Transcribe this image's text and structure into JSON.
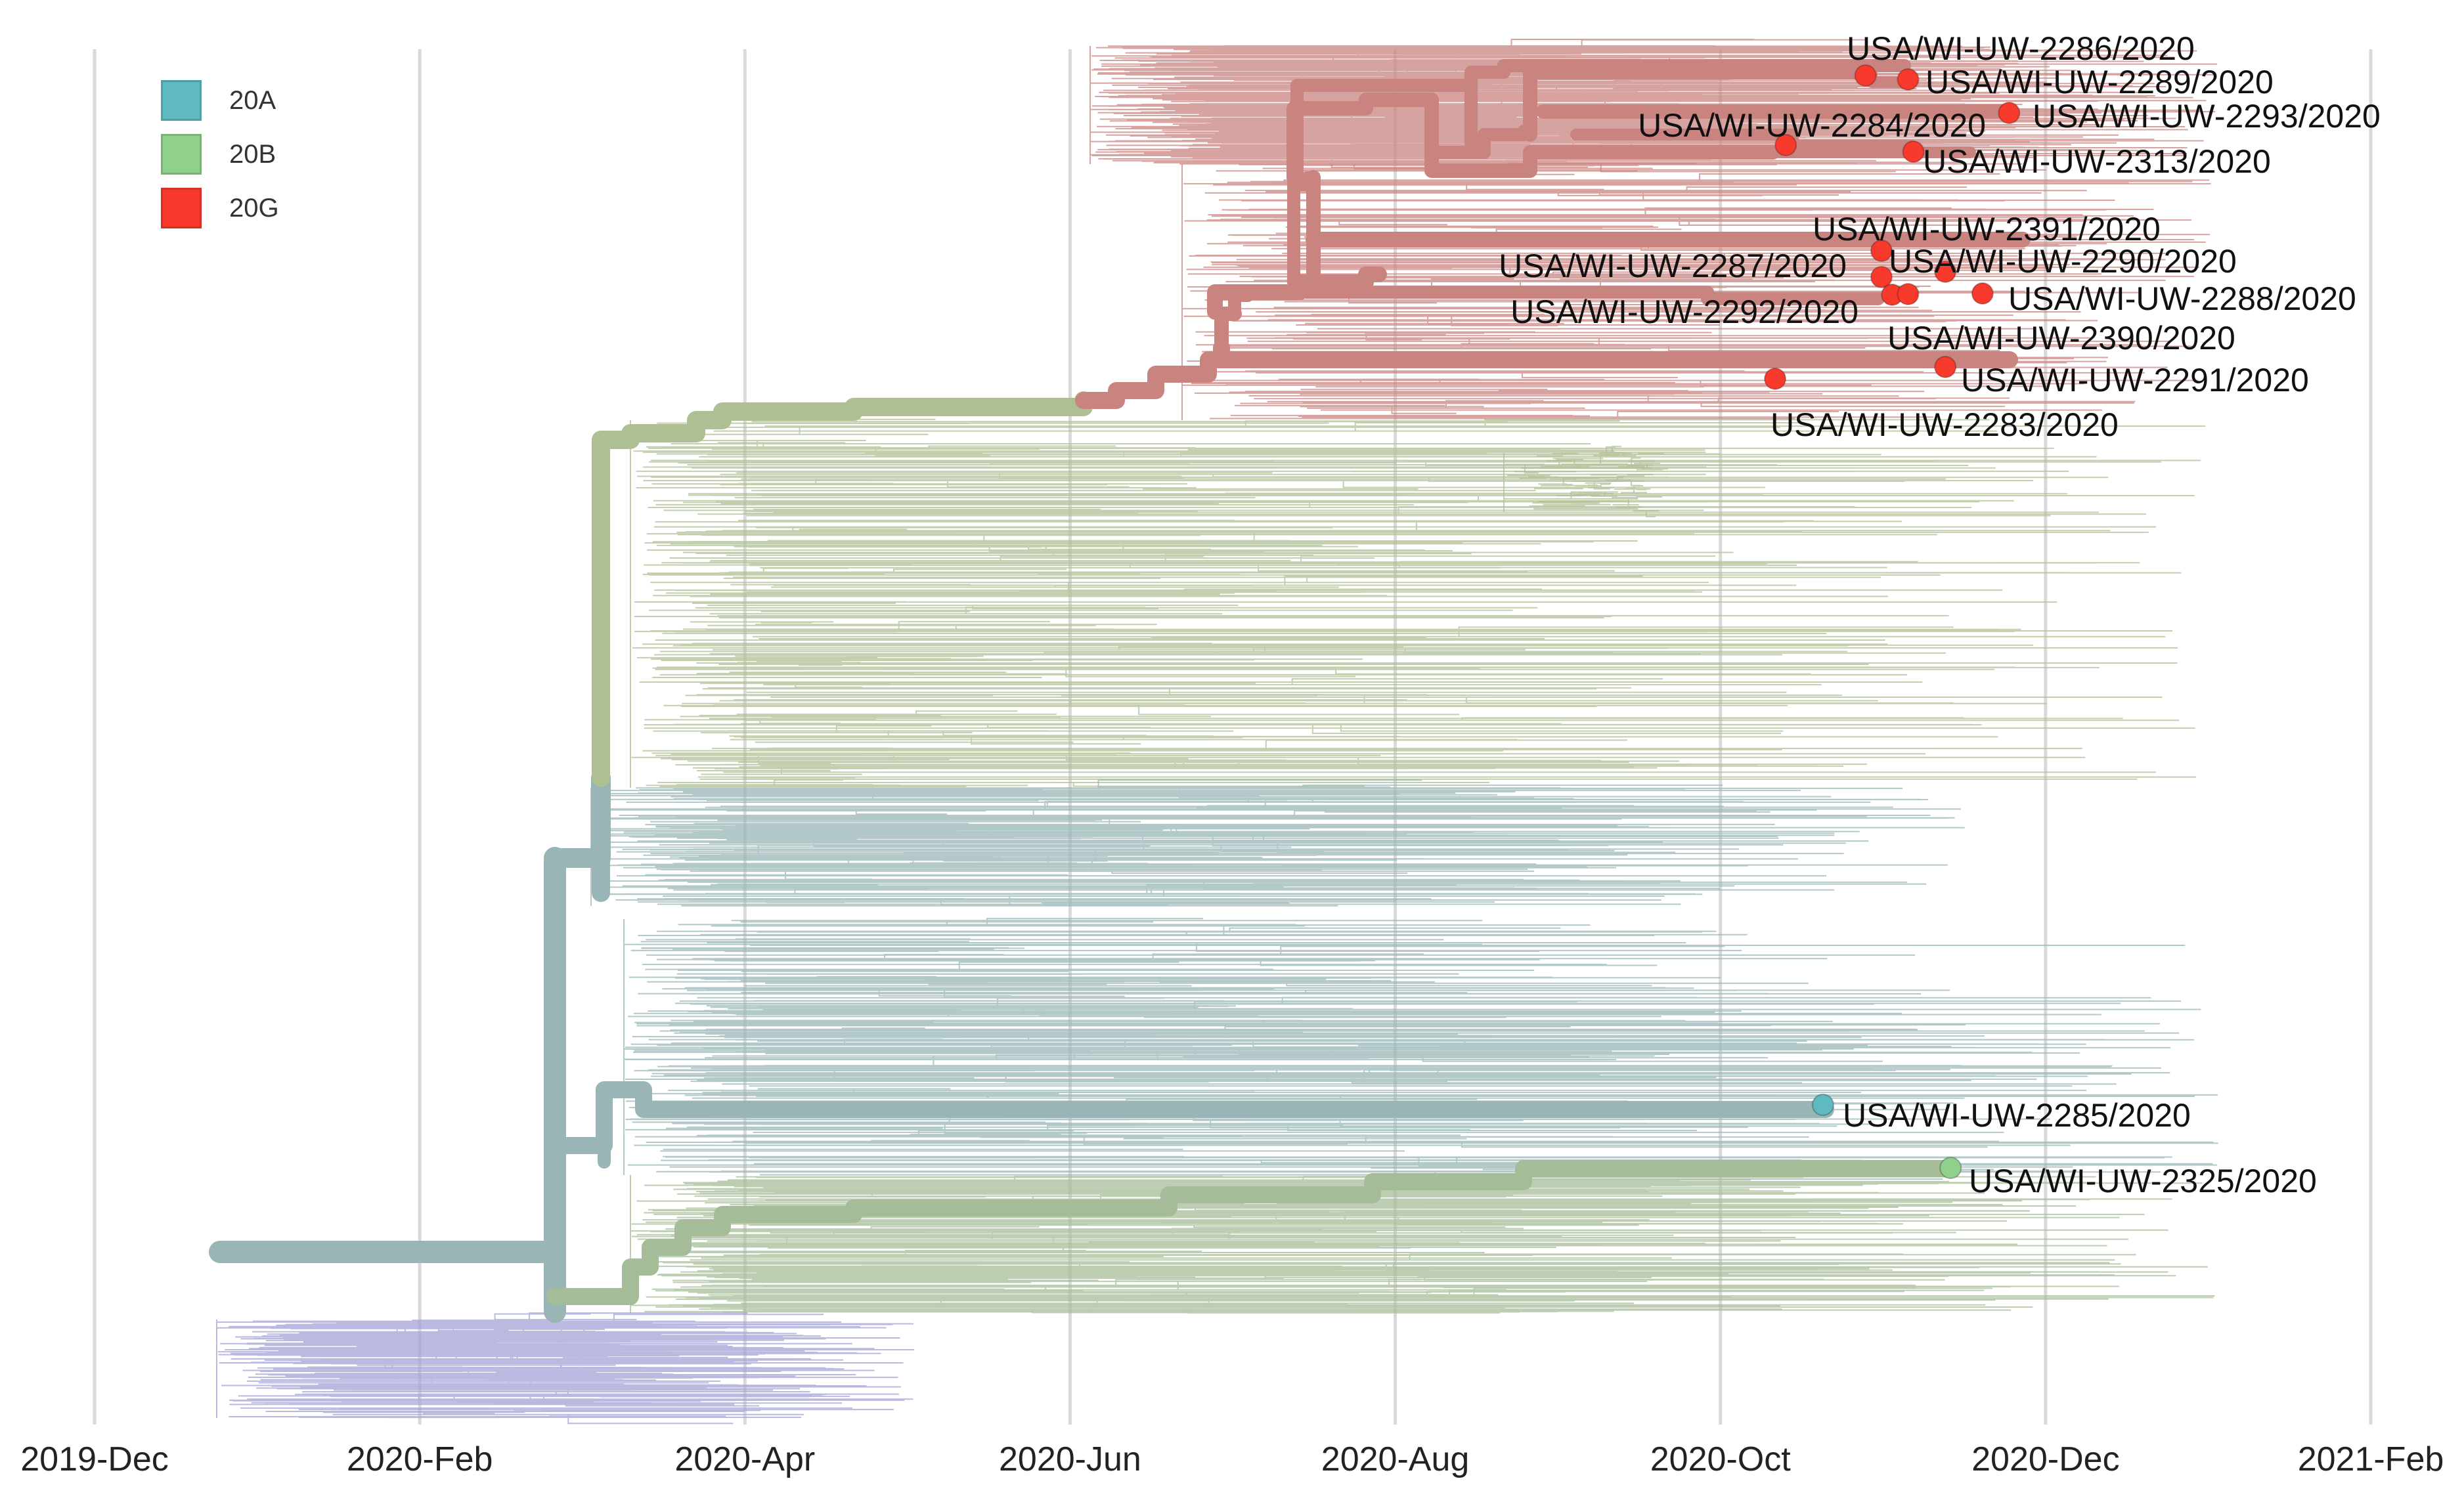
{
  "legend": [
    {
      "label": "20A",
      "color": "#5fb9c0"
    },
    {
      "label": "20B",
      "color": "#8fd08c"
    },
    {
      "label": "20G",
      "color": "#f83a2c"
    }
  ],
  "time_axis": {
    "labels": [
      "2019-Dec",
      "2020-Feb",
      "2020-Apr",
      "2020-Jun",
      "2020-Aug",
      "2020-Oct",
      "2020-Dec",
      "2021-Feb"
    ]
  },
  "clade_colors": {
    "20A_branch": "#9ab5b6",
    "20B_branch": "#a5bc98",
    "20G_branch": "#c98480",
    "20G_trunk": "#afbf94",
    "19_branch": "#a3a3d6"
  },
  "highlighted_tips": [
    {
      "label": "USA/WI-UW-2286/2020",
      "clade": "20G",
      "date": "2020-10-29"
    },
    {
      "label": "USA/WI-UW-2289/2020",
      "clade": "20G",
      "date": "2020-11-06"
    },
    {
      "label": "USA/WI-UW-2293/2020",
      "clade": "20G",
      "date": "2020-11-25"
    },
    {
      "label": "USA/WI-UW-2284/2020",
      "clade": "20G",
      "date": "2020-10-14"
    },
    {
      "label": "USA/WI-UW-2313/2020",
      "clade": "20G",
      "date": "2020-11-07"
    },
    {
      "label": "USA/WI-UW-2391/2020",
      "clade": "20G",
      "date": "2020-11-01"
    },
    {
      "label": "USA/WI-UW-2290/2020",
      "clade": "20G",
      "date": "2020-11-13"
    },
    {
      "label": "USA/WI-UW-2287/2020",
      "clade": "20G",
      "date": "2020-11-01"
    },
    {
      "label": "USA/WI-UW-2288/2020",
      "clade": "20G",
      "date": "2020-11-20"
    },
    {
      "label": "USA/WI-UW-2292/2020",
      "clade": "20G",
      "date": "2020-11-03"
    },
    {
      "label": "USA/WI-UW-2390/2020",
      "clade": "20G",
      "date": "2020-11-06"
    },
    {
      "label": "USA/WI-UW-2291/2020",
      "clade": "20G",
      "date": "2020-11-13"
    },
    {
      "label": "USA/WI-UW-2283/2020",
      "clade": "20G",
      "date": "2020-10-12"
    },
    {
      "label": "USA/WI-UW-2285/2020",
      "clade": "20A",
      "date": "2020-10-21"
    },
    {
      "label": "USA/WI-UW-2325/2020",
      "clade": "20B",
      "date": "2020-11-14"
    }
  ]
}
